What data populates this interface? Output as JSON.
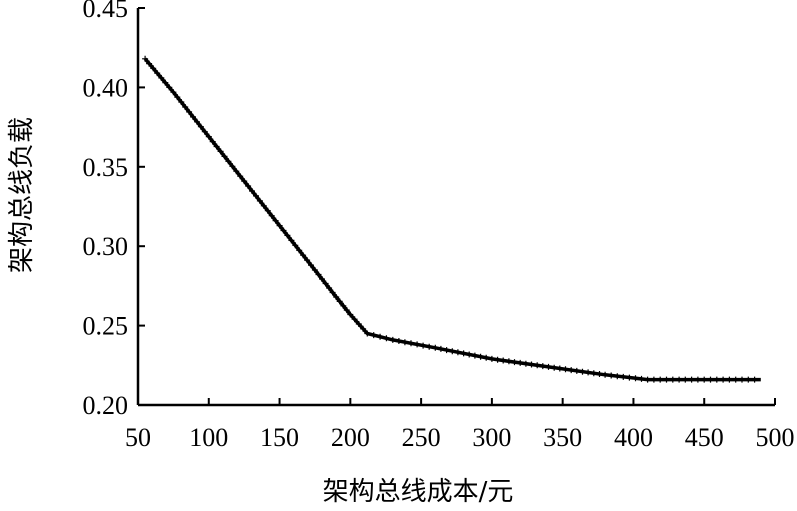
{
  "chart_data": {
    "type": "line",
    "title": "",
    "xlabel": "架构总线成本/元",
    "ylabel": "架构总线负载",
    "xlim": [
      50,
      500
    ],
    "ylim": [
      0.2,
      0.45
    ],
    "x_ticks": [
      "50",
      "100",
      "150",
      "200",
      "250",
      "300",
      "350",
      "400",
      "450",
      "500"
    ],
    "y_ticks": [
      "0.20",
      "0.25",
      "0.30",
      "0.35",
      "0.40",
      "0.45"
    ],
    "grid": false,
    "legend": "none",
    "marker": "+",
    "line_color": "#000000",
    "series": [
      {
        "x": [
          55,
          75,
          100,
          125,
          150,
          175,
          190,
          200,
          212,
          230,
          260,
          300,
          340,
          380,
          410,
          450,
          490
        ],
        "y": [
          0.418,
          0.397,
          0.369,
          0.341,
          0.313,
          0.285,
          0.268,
          0.257,
          0.245,
          0.241,
          0.236,
          0.229,
          0.224,
          0.219,
          0.216,
          0.216,
          0.216
        ]
      }
    ]
  }
}
